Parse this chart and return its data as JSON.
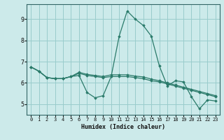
{
  "xlabel": "Humidex (Indice chaleur)",
  "bg_color": "#cceaea",
  "grid_color": "#99cccc",
  "line_color": "#2a7a6a",
  "lines": [
    [
      6.75,
      6.55,
      6.25,
      6.2,
      6.2,
      6.3,
      6.35,
      5.55,
      5.3,
      5.4,
      6.3,
      8.2,
      9.38,
      9.0,
      8.7,
      8.2,
      6.8,
      5.85,
      6.1,
      6.05,
      5.35,
      4.78,
      5.2,
      5.15
    ],
    [
      6.75,
      6.55,
      6.25,
      6.2,
      6.2,
      6.3,
      6.45,
      6.35,
      6.3,
      6.25,
      6.3,
      6.3,
      6.3,
      6.25,
      6.2,
      6.1,
      6.05,
      5.95,
      5.85,
      5.75,
      5.65,
      5.55,
      5.45,
      5.35
    ],
    [
      6.75,
      6.55,
      6.25,
      6.2,
      6.2,
      6.3,
      6.5,
      6.4,
      6.35,
      6.3,
      6.38,
      6.38,
      6.38,
      6.32,
      6.28,
      6.18,
      6.1,
      6.0,
      5.9,
      5.8,
      5.7,
      5.6,
      5.5,
      5.4
    ]
  ],
  "x_values": [
    0,
    1,
    2,
    3,
    4,
    5,
    6,
    7,
    8,
    9,
    10,
    11,
    12,
    13,
    14,
    15,
    16,
    17,
    18,
    19,
    20,
    21,
    22,
    23
  ],
  "ylim": [
    4.5,
    9.7
  ],
  "yticks": [
    5,
    6,
    7,
    8,
    9
  ],
  "xticks": [
    0,
    1,
    2,
    3,
    4,
    5,
    6,
    7,
    8,
    9,
    10,
    11,
    12,
    13,
    14,
    15,
    16,
    17,
    18,
    19,
    20,
    21,
    22,
    23
  ]
}
